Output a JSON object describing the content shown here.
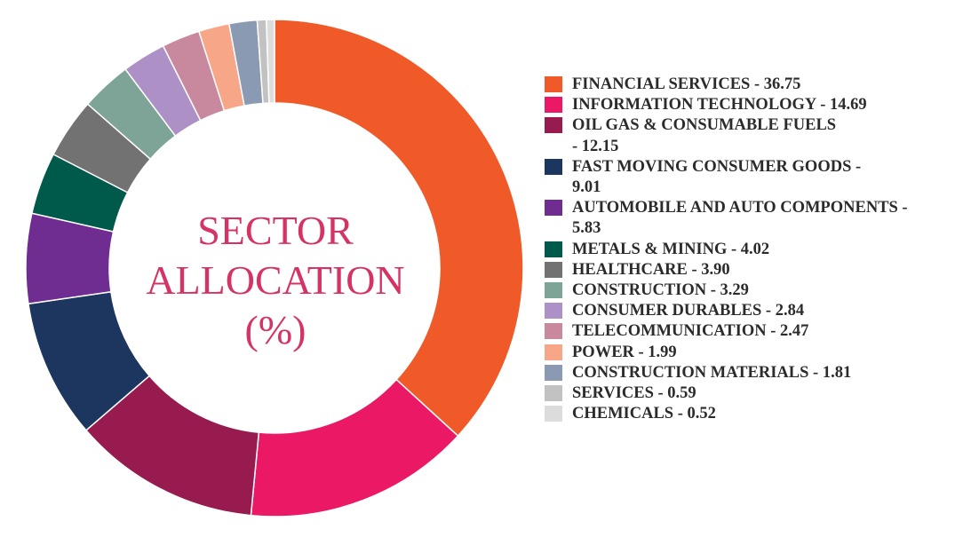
{
  "chart_data": {
    "type": "pie",
    "title": "SECTOR ALLOCATION (%)",
    "title_lines": [
      "SECTOR",
      "ALLOCATION",
      "(%)"
    ],
    "legend_position": "right",
    "slices": [
      {
        "label": "FINANCIAL SERVICES",
        "value": 36.75,
        "color": "#f05a28",
        "legend_lines": [
          "FINANCIAL SERVICES - 36.75"
        ]
      },
      {
        "label": "INFORMATION TECHNOLOGY",
        "value": 14.69,
        "color": "#eb1866",
        "legend_lines": [
          "INFORMATION TECHNOLOGY - 14.69"
        ]
      },
      {
        "label": "OIL GAS & CONSUMABLE FUELS",
        "value": 12.15,
        "color": "#971b4e",
        "legend_lines": [
          "OIL GAS & CONSUMABLE FUELS",
          "- 12.15"
        ]
      },
      {
        "label": "FAST MOVING CONSUMER GOODS",
        "value": 9.01,
        "color": "#1c3660",
        "legend_lines": [
          "FAST MOVING CONSUMER GOODS -",
          "9.01"
        ]
      },
      {
        "label": "AUTOMOBILE AND AUTO COMPONENTS",
        "value": 5.83,
        "color": "#6f2c91",
        "legend_lines": [
          "AUTOMOBILE AND AUTO COMPONENTS -",
          "5.83"
        ]
      },
      {
        "label": "METALS & MINING",
        "value": 4.02,
        "color": "#005a4b",
        "legend_lines": [
          "METALS & MINING - 4.02"
        ]
      },
      {
        "label": "HEALTHCARE",
        "value": 3.9,
        "color": "#727272",
        "legend_lines": [
          "HEALTHCARE - 3.90"
        ]
      },
      {
        "label": "CONSTRUCTION",
        "value": 3.29,
        "color": "#7ea497",
        "legend_lines": [
          "CONSTRUCTION - 3.29"
        ]
      },
      {
        "label": "CONSUMER DURABLES",
        "value": 2.84,
        "color": "#ac90c6",
        "legend_lines": [
          "CONSUMER DURABLES - 2.84"
        ]
      },
      {
        "label": "TELECOMMUNICATION",
        "value": 2.47,
        "color": "#c8889e",
        "legend_lines": [
          "TELECOMMUNICATION - 2.47"
        ]
      },
      {
        "label": "POWER",
        "value": 1.99,
        "color": "#f8a688",
        "legend_lines": [
          "POWER - 1.99"
        ]
      },
      {
        "label": "CONSTRUCTION MATERIALS",
        "value": 1.81,
        "color": "#8a9ab3",
        "legend_lines": [
          "CONSTRUCTION MATERIALS - 1.81"
        ]
      },
      {
        "label": "SERVICES",
        "value": 0.59,
        "color": "#c2c2c2",
        "legend_lines": [
          "SERVICES - 0.59"
        ]
      },
      {
        "label": "CHEMICALS",
        "value": 0.52,
        "color": "#dcdcdc",
        "legend_lines": [
          "CHEMICALS - 0.52"
        ]
      }
    ]
  }
}
